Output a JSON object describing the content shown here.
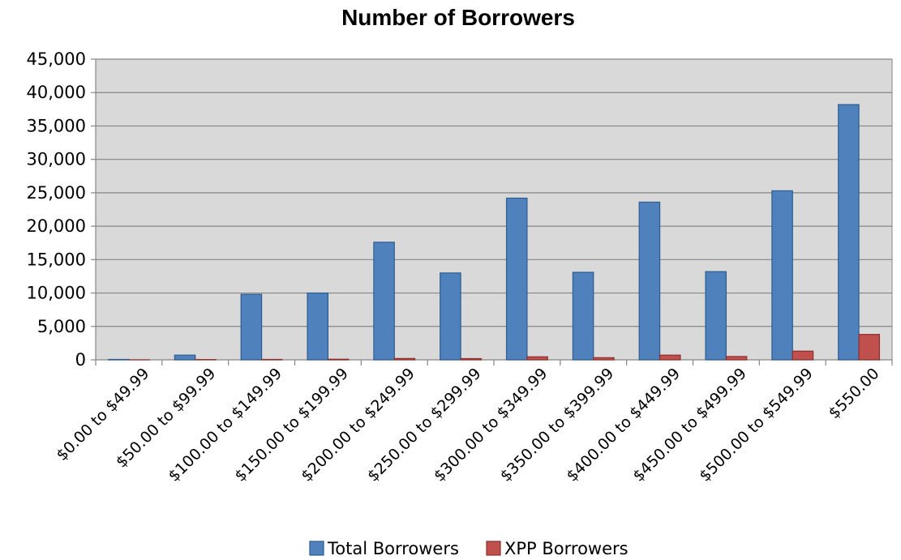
{
  "chart_data": {
    "type": "bar",
    "title": "Number of Borrowers",
    "xlabel": "",
    "ylabel": "",
    "ylim": [
      0,
      45000
    ],
    "yticks": [
      "0",
      "5,000",
      "10,000",
      "15,000",
      "20,000",
      "25,000",
      "30,000",
      "35,000",
      "40,000",
      "45,000"
    ],
    "grid": true,
    "legend_position": "bottom",
    "categories": [
      "$0.00 to $49.99",
      "$50.00 to $99.99",
      "$100.00 to $149.99",
      "$150.00 to $199.99",
      "$200.00 to $249.99",
      "$250.00 to $299.99",
      "$300.00 to $349.99",
      "$350.00 to $399.99",
      "$400.00 to $449.99",
      "$450.00 to $499.99",
      "$500.00 to $549.99",
      "$550.00"
    ],
    "series": [
      {
        "name": "Total Borrowers",
        "color": "#4F81BD",
        "values": [
          60,
          700,
          9800,
          10000,
          17600,
          13000,
          24200,
          13100,
          23600,
          13200,
          25300,
          38200
        ]
      },
      {
        "name": "XPP Borrowers",
        "color": "#C0504D",
        "values": [
          5,
          40,
          60,
          90,
          200,
          180,
          450,
          320,
          700,
          500,
          1300,
          3800
        ]
      }
    ],
    "plot_background": "#D9D9D9"
  }
}
